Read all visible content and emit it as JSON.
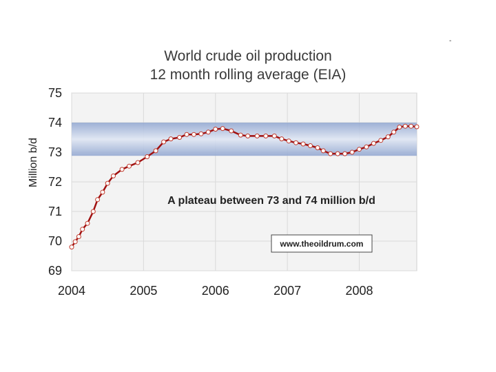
{
  "chart_data": {
    "type": "line",
    "title_lines": [
      "World crude oil production",
      "12 month rolling average (EIA)"
    ],
    "ylabel": "Million b/d",
    "xlabel": "",
    "ylim": [
      69,
      75
    ],
    "y_ticks": [
      "69",
      "70",
      "71",
      "72",
      "73",
      "74",
      "75"
    ],
    "x_range": [
      2004,
      2008.8
    ],
    "x_ticks": [
      "2004",
      "2005",
      "2006",
      "2007",
      "2008"
    ],
    "band": {
      "from": 72.88,
      "to": 74.0
    },
    "annotation": "A plateau between 73 and 74 million b/d",
    "source_label": "www.theoildrum.com",
    "colors": {
      "line": "#a01010",
      "marker_edge": "#c0392b",
      "band_edge": "#8fa5d0",
      "band_mid": "#dfe6f3",
      "plot_bg": "#f3f3f3",
      "grid": "#d9d9d9"
    },
    "series": [
      {
        "name": "World crude oil production (12 month rolling average)",
        "points": [
          [
            2004.0,
            69.8
          ],
          [
            2004.05,
            69.98
          ],
          [
            2004.1,
            70.15
          ],
          [
            2004.15,
            70.4
          ],
          [
            2004.22,
            70.6
          ],
          [
            2004.3,
            71.0
          ],
          [
            2004.36,
            71.4
          ],
          [
            2004.43,
            71.65
          ],
          [
            2004.5,
            71.95
          ],
          [
            2004.58,
            72.2
          ],
          [
            2004.7,
            72.42
          ],
          [
            2004.8,
            72.53
          ],
          [
            2004.92,
            72.65
          ],
          [
            2005.05,
            72.85
          ],
          [
            2005.17,
            73.05
          ],
          [
            2005.28,
            73.35
          ],
          [
            2005.38,
            73.45
          ],
          [
            2005.5,
            73.5
          ],
          [
            2005.6,
            73.6
          ],
          [
            2005.7,
            73.6
          ],
          [
            2005.8,
            73.62
          ],
          [
            2005.9,
            73.68
          ],
          [
            2006.0,
            73.78
          ],
          [
            2006.1,
            73.8
          ],
          [
            2006.22,
            73.72
          ],
          [
            2006.35,
            73.58
          ],
          [
            2006.45,
            73.55
          ],
          [
            2006.58,
            73.55
          ],
          [
            2006.7,
            73.55
          ],
          [
            2006.82,
            73.55
          ],
          [
            2006.92,
            73.45
          ],
          [
            2007.02,
            73.38
          ],
          [
            2007.12,
            73.32
          ],
          [
            2007.22,
            73.28
          ],
          [
            2007.32,
            73.22
          ],
          [
            2007.42,
            73.15
          ],
          [
            2007.5,
            73.05
          ],
          [
            2007.6,
            72.95
          ],
          [
            2007.7,
            72.95
          ],
          [
            2007.8,
            72.95
          ],
          [
            2007.9,
            73.0
          ],
          [
            2008.0,
            73.1
          ],
          [
            2008.1,
            73.18
          ],
          [
            2008.2,
            73.3
          ],
          [
            2008.3,
            73.4
          ],
          [
            2008.4,
            73.52
          ],
          [
            2008.48,
            73.68
          ],
          [
            2008.56,
            73.85
          ],
          [
            2008.64,
            73.88
          ],
          [
            2008.72,
            73.88
          ],
          [
            2008.8,
            73.86
          ]
        ]
      }
    ]
  }
}
